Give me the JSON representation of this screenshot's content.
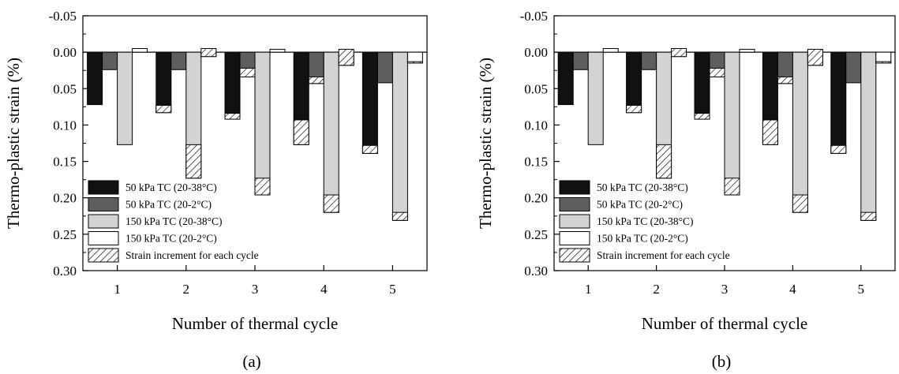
{
  "chart_data": [
    {
      "type": "bar",
      "panel_label": "(a)",
      "xlabel": "Number of thermal cycle",
      "ylabel": "Thermo-plastic strain (%)",
      "ylim": [
        -0.05,
        0.3
      ],
      "y_inverted": true,
      "yticks": [
        "-0.05",
        "0.00",
        "0.05",
        "0.10",
        "0.15",
        "0.20",
        "0.25",
        "0.30"
      ],
      "categories": [
        "1",
        "2",
        "3",
        "4",
        "5"
      ],
      "legend_position": "bottom-left",
      "series": [
        {
          "name": "50 kPa TC (20-38°C)",
          "color": "#111111",
          "values": [
            0.072,
            0.083,
            0.092,
            0.127,
            0.139
          ],
          "increments": [
            0,
            0.01,
            0.008,
            0.034,
            0.011
          ]
        },
        {
          "name": "50 kPa TC (20-2°C)",
          "color": "#5e5e5e",
          "values": [
            0.024,
            0.024,
            0.034,
            0.043,
            0.042
          ],
          "increments": [
            0,
            0,
            0.012,
            0.009,
            0
          ]
        },
        {
          "name": "150 kPa TC (20-38°C)",
          "color": "#d3d3d3",
          "values": [
            0.127,
            0.173,
            0.196,
            0.22,
            0.231
          ],
          "increments": [
            0,
            0.046,
            0.023,
            0.024,
            0.011
          ]
        },
        {
          "name": "150 kPa TC (20-2°C)",
          "color": "#ffffff",
          "values": [
            -0.005,
            0.006,
            -0.004,
            0.018,
            0.015
          ],
          "increments": [
            0,
            0.011,
            0,
            0.022,
            0.002
          ]
        }
      ],
      "increment_legend": "Strain increment for each cycle"
    },
    {
      "type": "bar",
      "panel_label": "(b)",
      "xlabel": "Number of thermal cycle",
      "ylabel": "Thermo-plastic strain (%)",
      "ylim": [
        -0.05,
        0.3
      ],
      "y_inverted": true,
      "yticks": [
        "-0.05",
        "0.00",
        "0.05",
        "0.10",
        "0.15",
        "0.20",
        "0.25",
        "0.30"
      ],
      "categories": [
        "1",
        "2",
        "3",
        "4",
        "5"
      ],
      "legend_position": "bottom-left",
      "series": [
        {
          "name": "50 kPa TC (20-38°C)",
          "color": "#111111",
          "values": [
            0.072,
            0.083,
            0.092,
            0.127,
            0.139
          ],
          "increments": [
            0,
            0.01,
            0.008,
            0.034,
            0.011
          ]
        },
        {
          "name": "50 kPa TC (20-2°C)",
          "color": "#5e5e5e",
          "values": [
            0.024,
            0.024,
            0.034,
            0.043,
            0.042
          ],
          "increments": [
            0,
            0,
            0.012,
            0.009,
            0
          ]
        },
        {
          "name": "150 kPa TC (20-38°C)",
          "color": "#d3d3d3",
          "values": [
            0.127,
            0.173,
            0.196,
            0.22,
            0.231
          ],
          "increments": [
            0,
            0.046,
            0.023,
            0.024,
            0.011
          ]
        },
        {
          "name": "150 kPa TC (20-2°C)",
          "color": "#ffffff",
          "values": [
            -0.005,
            0.006,
            -0.004,
            0.018,
            0.015
          ],
          "increments": [
            0,
            0.011,
            0,
            0.022,
            0.002
          ]
        }
      ],
      "increment_legend": "Strain increment for each cycle"
    }
  ]
}
